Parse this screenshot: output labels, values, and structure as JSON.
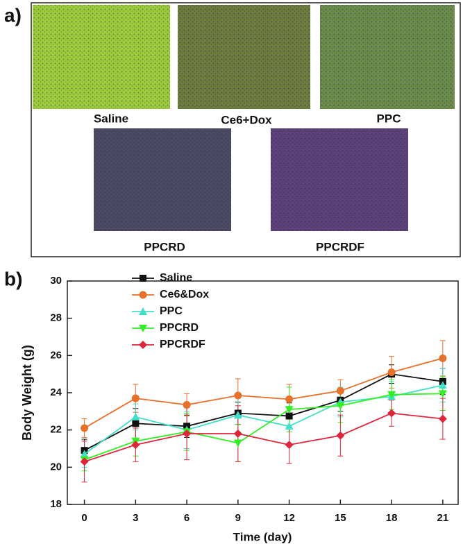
{
  "panel_labels": [
    "a)",
    "b)"
  ],
  "images": [
    "Saline",
    "Ce6+Dox",
    "PPC",
    "PPCRD",
    "PPCRDF"
  ],
  "chart_data": {
    "type": "line",
    "x_label": "Time (day)",
    "y_label": "Body Weight (g)",
    "x": [
      0,
      3,
      6,
      9,
      12,
      15,
      18,
      21
    ],
    "xlim": [
      -1,
      21.9
    ],
    "xticks": [
      0,
      3,
      6,
      9,
      12,
      15,
      18,
      21
    ],
    "ylim": [
      18,
      30
    ],
    "yticks": [
      18,
      20,
      22,
      24,
      26,
      28,
      30
    ],
    "legend": "upper-left",
    "grid": false,
    "series": [
      {
        "name": "Saline",
        "color": "#111111",
        "marker": "square",
        "values": [
          20.9,
          22.35,
          22.2,
          22.9,
          22.75,
          23.6,
          25.0,
          24.6
        ],
        "errors": [
          0.6,
          0.8,
          0.6,
          0.6,
          0.7,
          0.6,
          0.5,
          0.7
        ]
      },
      {
        "name": "Ce6&Dox",
        "color": "#e8702a",
        "marker": "circle",
        "values": [
          22.1,
          23.7,
          23.35,
          23.85,
          23.65,
          24.1,
          25.1,
          25.85
        ],
        "errors": [
          0.5,
          0.75,
          0.6,
          0.9,
          0.8,
          0.6,
          0.85,
          0.95
        ]
      },
      {
        "name": "PPC",
        "color": "#40e0c8",
        "marker": "triangle-up",
        "values": [
          20.7,
          22.7,
          22.0,
          22.8,
          22.2,
          23.5,
          23.8,
          24.4
        ],
        "errors": [
          0.7,
          0.7,
          1.0,
          0.9,
          1.0,
          0.8,
          0.8,
          0.9
        ]
      },
      {
        "name": "PPCRD",
        "color": "#33ee22",
        "marker": "triangle-down",
        "values": [
          20.4,
          21.4,
          21.9,
          21.3,
          23.1,
          23.3,
          23.9,
          23.95
        ],
        "errors": [
          0.6,
          0.8,
          1.0,
          1.0,
          1.2,
          0.9,
          0.8,
          0.9
        ]
      },
      {
        "name": "PPCRDF",
        "color": "#e0243a",
        "marker": "diamond",
        "values": [
          20.3,
          21.2,
          21.8,
          21.8,
          21.2,
          21.7,
          22.9,
          22.6
        ],
        "errors": [
          1.1,
          0.9,
          1.4,
          1.5,
          1.0,
          1.1,
          0.7,
          1.1
        ]
      }
    ]
  }
}
